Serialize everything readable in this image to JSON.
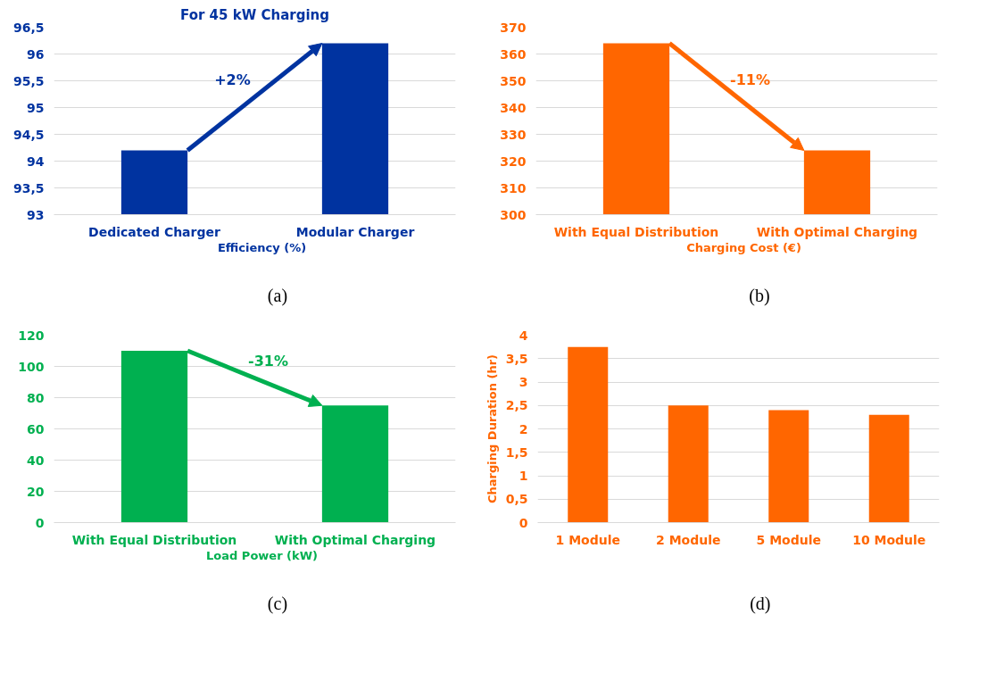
{
  "chart_data": [
    {
      "type": "bar",
      "title": "For 45 kW Charging",
      "categories": [
        "Dedicated Charger",
        "Modular Charger"
      ],
      "series": [
        {
          "name": "Efficiency (%)",
          "color": "#0033a0",
          "values": [
            94.2,
            96.2
          ]
        }
      ],
      "ylim": [
        93,
        96.5
      ],
      "yticks": [
        93,
        {
          "value": 93.5,
          "label": "93,5"
        },
        94,
        {
          "value": 94.5,
          "label": "94,5"
        },
        95,
        {
          "value": 95.5,
          "label": "95,5"
        },
        96,
        {
          "value": 96.5,
          "label": "96,5"
        }
      ],
      "grid": "y",
      "legend": "bottom",
      "annotations": [
        "+2%",
        "(a)"
      ]
    },
    {
      "type": "bar",
      "categories": [
        "With Equal Distribution",
        "With Optimal Charging"
      ],
      "series": [
        {
          "name": "Charging Cost (€)",
          "color": "#ff6600",
          "values": [
            364,
            324
          ]
        }
      ],
      "ylim": [
        300,
        370
      ],
      "yticks": [
        300,
        310,
        320,
        330,
        340,
        350,
        360,
        370
      ],
      "grid": "y",
      "legend": "bottom",
      "annotations": [
        "-11%",
        "(b)"
      ]
    },
    {
      "type": "bar",
      "categories": [
        "With Equal Distribution",
        "With Optimal Charging"
      ],
      "series": [
        {
          "name": "Load Power (kW)",
          "color": "#00b050",
          "values": [
            110,
            75
          ]
        }
      ],
      "ylim": [
        0,
        120
      ],
      "yticks": [
        0,
        20,
        40,
        60,
        80,
        100,
        120
      ],
      "grid": "y",
      "legend": "bottom",
      "annotations": [
        "-31%",
        "(c)"
      ]
    },
    {
      "type": "bar",
      "ylabel": "Charging Duration (hr)",
      "categories": [
        "1 Module",
        "2 Module",
        "5 Module",
        "10 Module"
      ],
      "series": [
        {
          "color": "#ff6600",
          "values": [
            3.75,
            2.5,
            2.4,
            2.3
          ]
        }
      ],
      "ylim": [
        0,
        4
      ],
      "yticks": [
        0,
        {
          "value": 0.5,
          "label": "0,5"
        },
        1,
        {
          "value": 1.5,
          "label": "1,5"
        },
        2,
        {
          "value": 2.5,
          "label": "2,5"
        },
        3,
        {
          "value": 3.5,
          "label": "3,5"
        },
        4
      ],
      "grid": "y",
      "annotations": [
        "(d)"
      ]
    }
  ]
}
